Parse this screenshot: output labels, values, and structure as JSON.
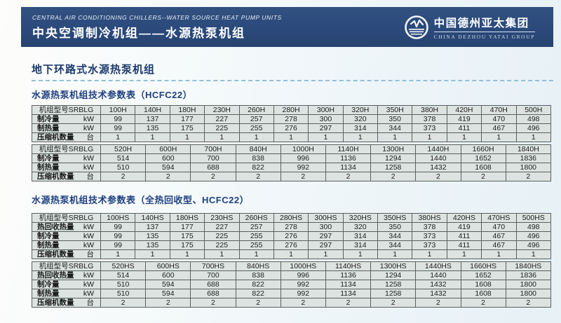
{
  "banner": {
    "title_en": "CENTRAL AIR CONDITIONING CHILLERS--WATER SOURCE HEAT PUMP UNITS",
    "title_cn": "中央空调制冷机组——水源热泵机组",
    "logo_cn": "中国德州亚太集团",
    "logo_en": "CHINA DEZHOU YATAI GROUP"
  },
  "section": {
    "title": "地下环路式水源热泵机组"
  },
  "tables": [
    {
      "title": "水源热泵机组技术参数表（HCFC22）",
      "blocks": [
        {
          "model_label": "机组型号SRBLG",
          "models": [
            "100H",
            "140H",
            "180H",
            "230H",
            "260H",
            "280H",
            "300H",
            "320H",
            "350H",
            "380H",
            "420H",
            "470H",
            "500H"
          ],
          "rows": [
            {
              "label": "制冷量",
              "unit": "kW",
              "values": [
                "99",
                "137",
                "177",
                "227",
                "257",
                "278",
                "300",
                "320",
                "350",
                "378",
                "419",
                "470",
                "498"
              ]
            },
            {
              "label": "制热量",
              "unit": "kW",
              "values": [
                "99",
                "135",
                "175",
                "225",
                "255",
                "276",
                "297",
                "314",
                "344",
                "373",
                "411",
                "467",
                "496"
              ]
            },
            {
              "label": "压缩机数量",
              "unit": "台",
              "values": [
                "1",
                "1",
                "1",
                "1",
                "1",
                "1",
                "1",
                "1",
                "1",
                "1",
                "1",
                "1",
                "1"
              ]
            }
          ]
        },
        {
          "model_label": "机组型号SRBLG",
          "models": [
            "520H",
            "600H",
            "700H",
            "840H",
            "1000H",
            "1140H",
            "1300H",
            "1440H",
            "1660H",
            "1840H"
          ],
          "rows": [
            {
              "label": "制冷量",
              "unit": "kW",
              "values": [
                "514",
                "600",
                "700",
                "838",
                "996",
                "1136",
                "1294",
                "1440",
                "1652",
                "1836"
              ]
            },
            {
              "label": "制热量",
              "unit": "kW",
              "values": [
                "510",
                "594",
                "688",
                "822",
                "992",
                "1134",
                "1258",
                "1432",
                "1608",
                "1800"
              ]
            },
            {
              "label": "压缩机数量",
              "unit": "台",
              "values": [
                "2",
                "2",
                "2",
                "2",
                "2",
                "2",
                "2",
                "2",
                "2",
                "2"
              ]
            }
          ]
        }
      ]
    },
    {
      "title": "水源热泵机组技术参数表（全热回收型、HCFC22）",
      "blocks": [
        {
          "model_label": "机组型号SRBLG",
          "models": [
            "100HS",
            "140HS",
            "180HS",
            "230HS",
            "260HS",
            "280HS",
            "300HS",
            "320HS",
            "350HS",
            "380HS",
            "420HS",
            "470HS",
            "500HS"
          ],
          "rows": [
            {
              "label": "热回收热量",
              "unit": "kW",
              "values": [
                "99",
                "137",
                "177",
                "227",
                "257",
                "278",
                "300",
                "320",
                "350",
                "378",
                "419",
                "470",
                "498"
              ]
            },
            {
              "label": "制冷量",
              "unit": "kW",
              "values": [
                "99",
                "135",
                "175",
                "225",
                "255",
                "276",
                "297",
                "314",
                "344",
                "373",
                "411",
                "467",
                "496"
              ]
            },
            {
              "label": "制热量",
              "unit": "kW",
              "values": [
                "99",
                "135",
                "175",
                "225",
                "255",
                "276",
                "297",
                "314",
                "344",
                "373",
                "411",
                "467",
                "496"
              ]
            },
            {
              "label": "压缩机数量",
              "unit": "台",
              "values": [
                "1",
                "1",
                "1",
                "1",
                "1",
                "1",
                "1",
                "1",
                "1",
                "1",
                "1",
                "1",
                "1"
              ]
            }
          ]
        },
        {
          "model_label": "机组型号SRBLG",
          "models": [
            "520HS",
            "600HS",
            "700HS",
            "840HS",
            "1000HS",
            "1140HS",
            "1300HS",
            "1440HS",
            "1660HS",
            "1840HS"
          ],
          "rows": [
            {
              "label": "热回收热量",
              "unit": "kW",
              "values": [
                "514",
                "600",
                "700",
                "838",
                "996",
                "1136",
                "1294",
                "1440",
                "1652",
                "1836"
              ]
            },
            {
              "label": "制冷量",
              "unit": "kW",
              "values": [
                "510",
                "594",
                "688",
                "822",
                "992",
                "1134",
                "1258",
                "1432",
                "1608",
                "1800"
              ]
            },
            {
              "label": "制热量",
              "unit": "kW",
              "values": [
                "510",
                "594",
                "688",
                "822",
                "992",
                "1134",
                "1258",
                "1432",
                "1608",
                "1800"
              ]
            },
            {
              "label": "压缩机数量",
              "unit": "台",
              "values": [
                "2",
                "2",
                "2",
                "2",
                "2",
                "2",
                "2",
                "2",
                "2",
                "2"
              ]
            }
          ]
        }
      ]
    }
  ],
  "colors": {
    "banner_bg": "#2b4a7c",
    "heading_text": "#1c3a6e",
    "table_title_text": "#1e4080",
    "cell_bg": "#dce3e0",
    "table_border": "#596160",
    "dashed_line": "#8fc0dc"
  }
}
